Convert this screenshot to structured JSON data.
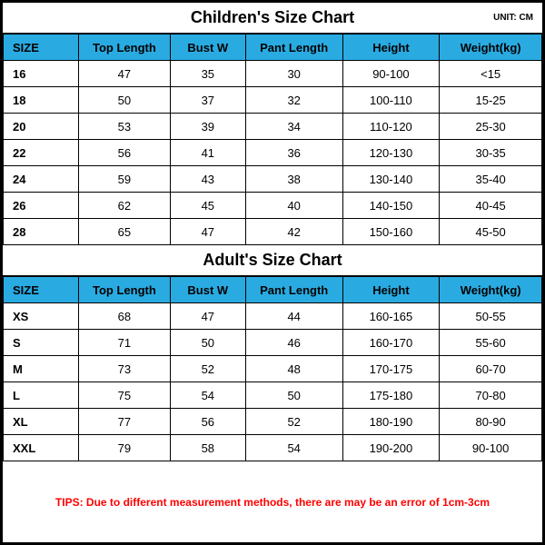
{
  "colors": {
    "header_bg": "#29abe2",
    "border": "#000000",
    "tips": "#ff0000",
    "bg": "#ffffff"
  },
  "children": {
    "title": "Children's Size Chart",
    "unit": "UNIT: CM",
    "columns": [
      "SIZE",
      "Top Length",
      "Bust W",
      "Pant Length",
      "Height",
      "Weight(kg)"
    ],
    "rows": [
      [
        "16",
        "47",
        "35",
        "30",
        "90-100",
        "<15"
      ],
      [
        "18",
        "50",
        "37",
        "32",
        "100-110",
        "15-25"
      ],
      [
        "20",
        "53",
        "39",
        "34",
        "110-120",
        "25-30"
      ],
      [
        "22",
        "56",
        "41",
        "36",
        "120-130",
        "30-35"
      ],
      [
        "24",
        "59",
        "43",
        "38",
        "130-140",
        "35-40"
      ],
      [
        "26",
        "62",
        "45",
        "40",
        "140-150",
        "40-45"
      ],
      [
        "28",
        "65",
        "47",
        "42",
        "150-160",
        "45-50"
      ]
    ]
  },
  "adult": {
    "title": "Adult's Size Chart",
    "columns": [
      "SIZE",
      "Top Length",
      "Bust W",
      "Pant Length",
      "Height",
      "Weight(kg)"
    ],
    "rows": [
      [
        "XS",
        "68",
        "47",
        "44",
        "160-165",
        "50-55"
      ],
      [
        "S",
        "71",
        "50",
        "46",
        "160-170",
        "55-60"
      ],
      [
        "M",
        "73",
        "52",
        "48",
        "170-175",
        "60-70"
      ],
      [
        "L",
        "75",
        "54",
        "50",
        "175-180",
        "70-80"
      ],
      [
        "XL",
        "77",
        "56",
        "52",
        "180-190",
        "80-90"
      ],
      [
        "XXL",
        "79",
        "58",
        "54",
        "190-200",
        "90-100"
      ]
    ]
  },
  "tips": "TIPS: Due to different measurement methods, there are may be an error of 1cm-3cm"
}
